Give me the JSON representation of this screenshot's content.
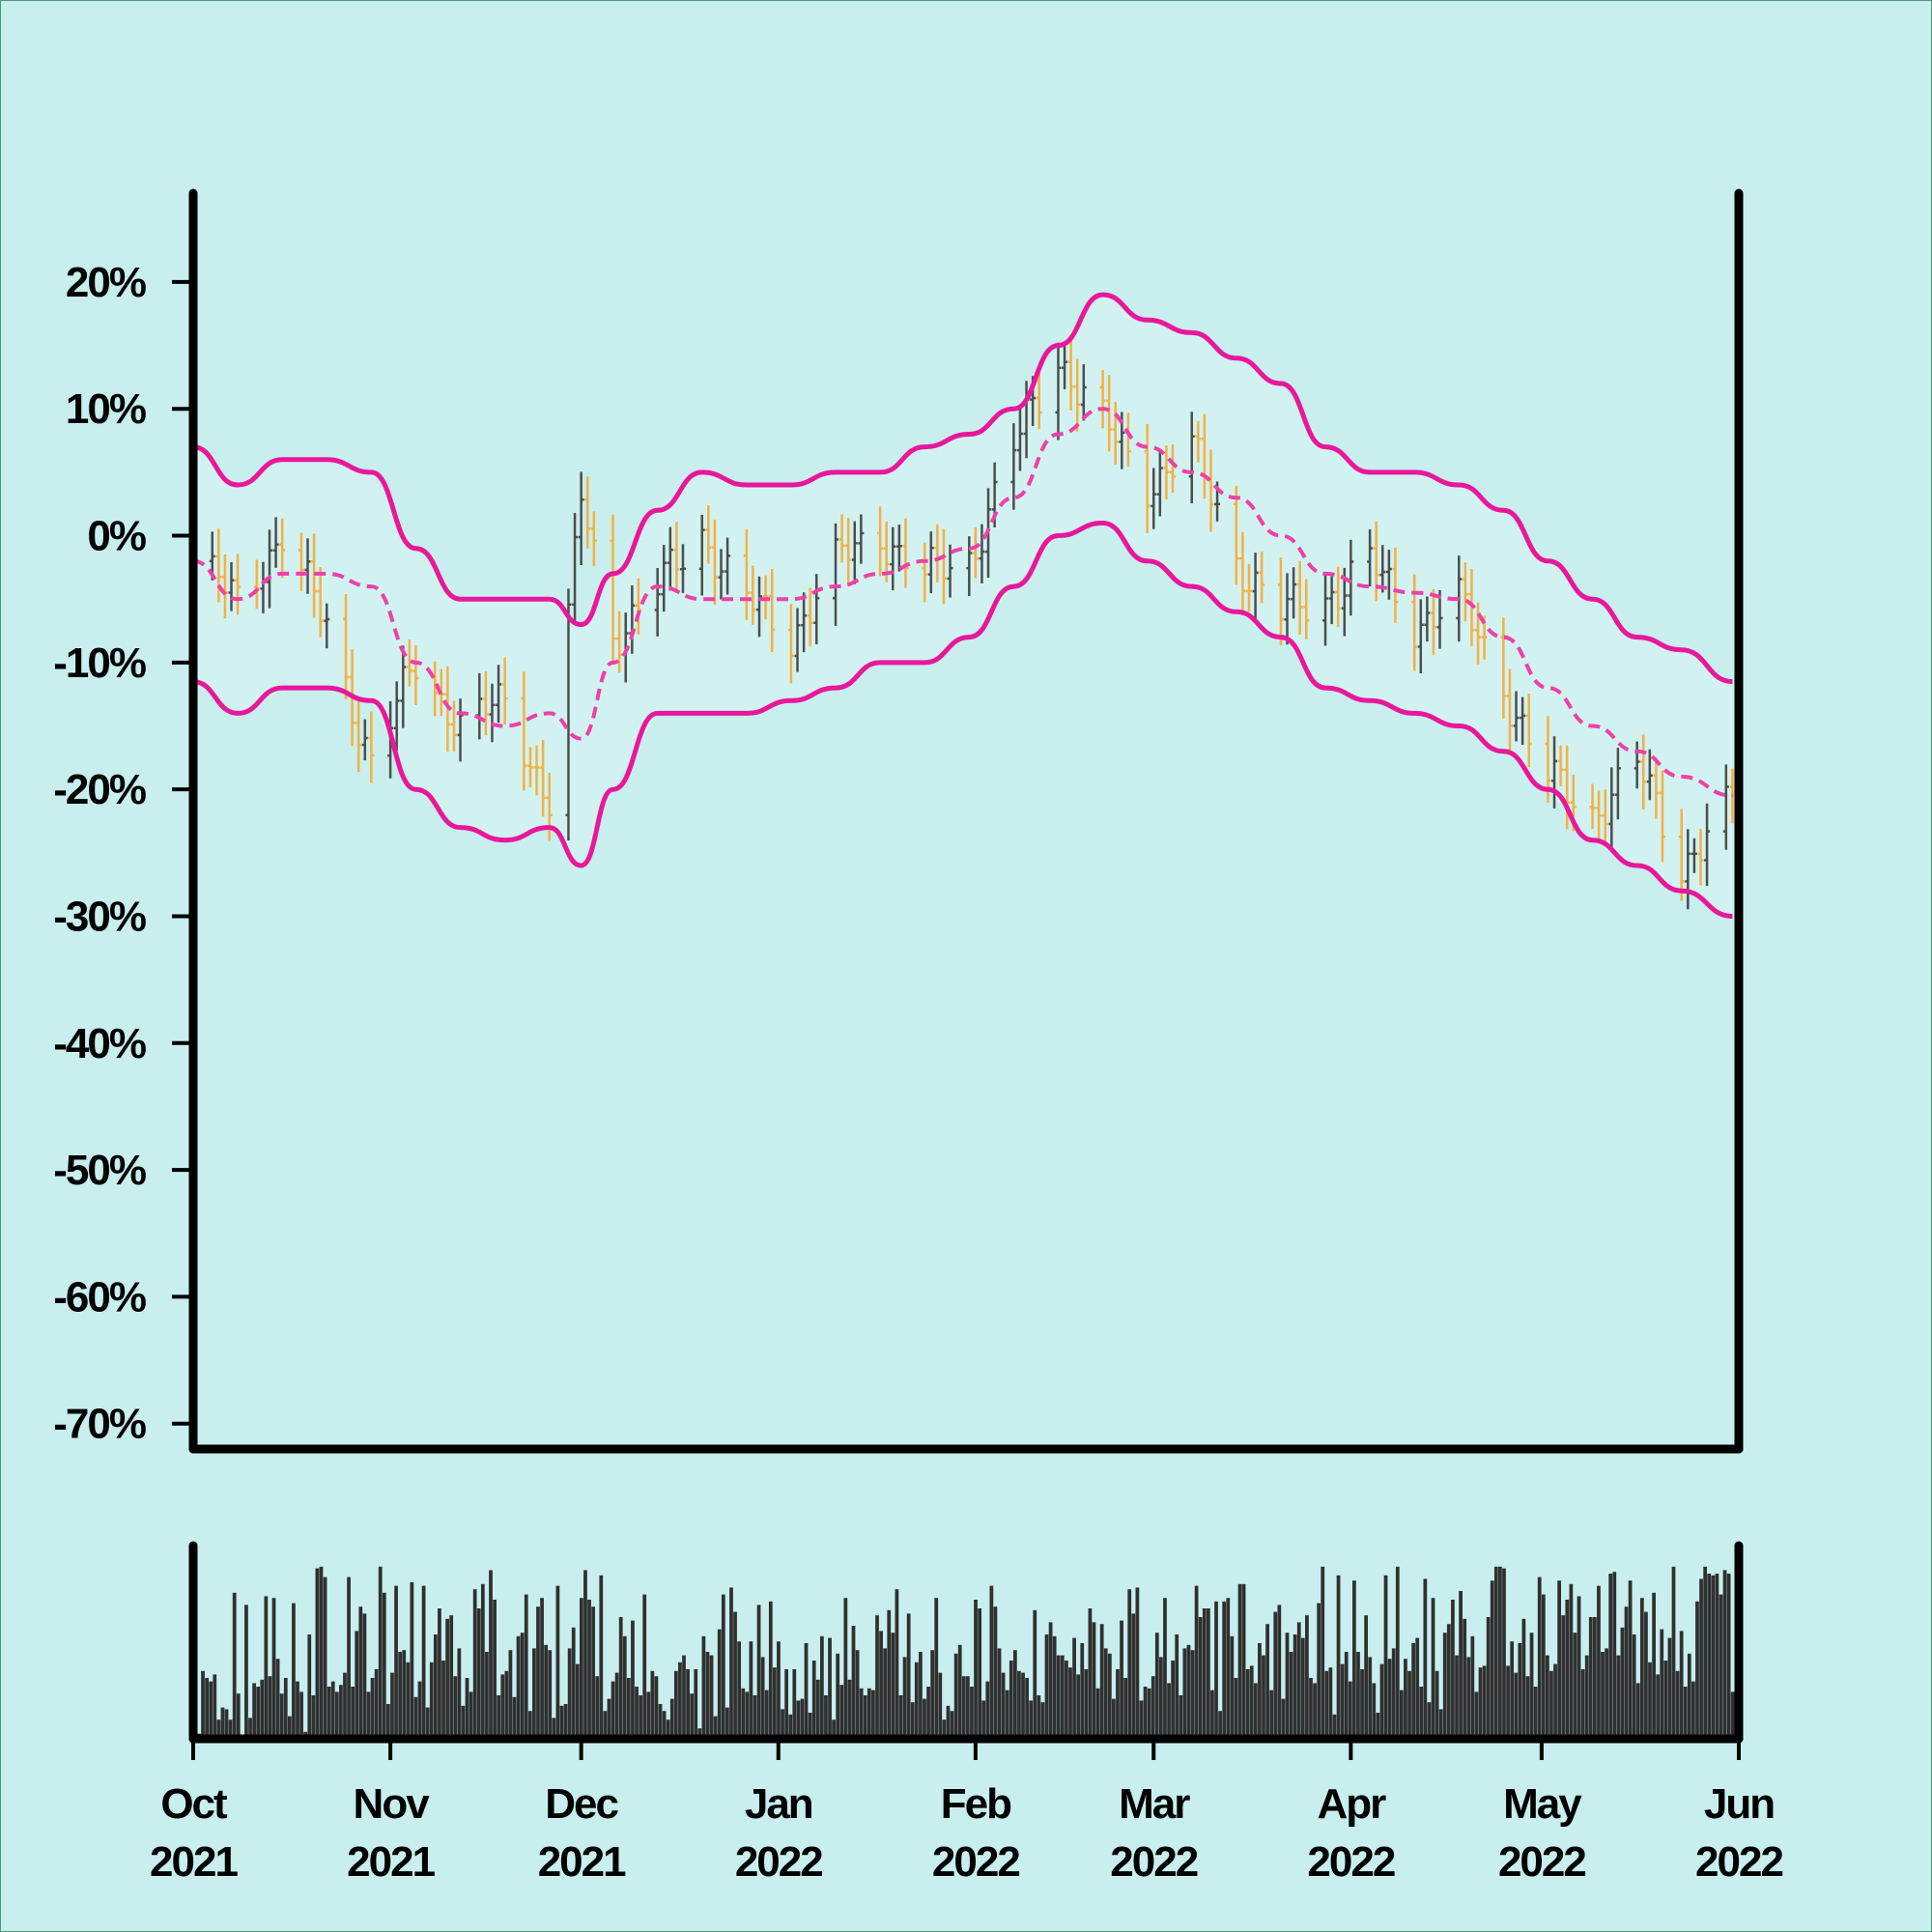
{
  "chart_data": {
    "type": "ohlc",
    "title": "",
    "xlabel": "",
    "ylabel": "",
    "x_range": [
      "2021-10-01",
      "2022-06-01"
    ],
    "ylim": [
      -0.72,
      0.27
    ],
    "y_ticks": [
      0.2,
      0.1,
      0.0,
      -0.1,
      -0.2,
      -0.3,
      -0.4,
      -0.5,
      -0.6,
      -0.7
    ],
    "y_tick_labels": [
      "20%",
      "10%",
      "0%",
      "-10%",
      "-20%",
      "-30%",
      "-40%",
      "-50%",
      "-60%",
      "-70%"
    ],
    "x_ticks": [
      "2021-10-01",
      "2021-11-01",
      "2021-12-01",
      "2022-01-01",
      "2022-02-01",
      "2022-03-01",
      "2022-04-01",
      "2022-05-01",
      "2022-06-01"
    ],
    "x_tick_labels": [
      [
        "Oct",
        "2021"
      ],
      [
        "Nov",
        "2021"
      ],
      [
        "Dec",
        "2021"
      ],
      [
        "Jan",
        "2022"
      ],
      [
        "Feb",
        "2022"
      ],
      [
        "Mar",
        "2022"
      ],
      [
        "Apr",
        "2022"
      ],
      [
        "May",
        "2022"
      ],
      [
        "Jun",
        "2022"
      ]
    ],
    "colors": {
      "background": "#c8eeee",
      "band_fill": "#d2f2f2",
      "band_line": "#e8189a",
      "middle_line": "#ee40a8",
      "up_bar": "#4d4d4d",
      "down_bar": "#f5b041",
      "volume_bar": "#303030",
      "axis": "#000000"
    },
    "series": [
      {
        "name": "price",
        "kind": "ohlc_close",
        "x": [
          "2021-10-01",
          "2021-10-08",
          "2021-10-15",
          "2021-10-22",
          "2021-10-29",
          "2021-11-05",
          "2021-11-12",
          "2021-11-19",
          "2021-11-26",
          "2021-12-01",
          "2021-12-06",
          "2021-12-13",
          "2021-12-20",
          "2021-12-27",
          "2022-01-03",
          "2022-01-10",
          "2022-01-17",
          "2022-01-24",
          "2022-01-31",
          "2022-02-07",
          "2022-02-14",
          "2022-02-21",
          "2022-02-28",
          "2022-03-07",
          "2022-03-14",
          "2022-03-21",
          "2022-03-28",
          "2022-04-04",
          "2022-04-11",
          "2022-04-18",
          "2022-04-25",
          "2022-05-02",
          "2022-05-09",
          "2022-05-16",
          "2022-05-23",
          "2022-05-31"
        ],
        "y": [
          -0.02,
          -0.05,
          0.0,
          -0.07,
          -0.18,
          -0.1,
          -0.15,
          -0.13,
          -0.21,
          0.03,
          -0.08,
          -0.04,
          0.0,
          -0.05,
          -0.08,
          -0.02,
          0.0,
          -0.03,
          -0.02,
          0.07,
          0.14,
          0.09,
          0.04,
          0.07,
          -0.02,
          -0.06,
          -0.05,
          -0.02,
          -0.07,
          -0.05,
          -0.12,
          -0.19,
          -0.22,
          -0.18,
          -0.26,
          -0.21
        ]
      },
      {
        "name": "upper band",
        "kind": "line",
        "x": [
          "2021-10-01",
          "2021-10-08",
          "2021-10-15",
          "2021-10-22",
          "2021-10-29",
          "2021-11-05",
          "2021-11-12",
          "2021-11-19",
          "2021-11-26",
          "2021-12-01",
          "2021-12-06",
          "2021-12-13",
          "2021-12-20",
          "2021-12-27",
          "2022-01-03",
          "2022-01-10",
          "2022-01-17",
          "2022-01-24",
          "2022-01-31",
          "2022-02-07",
          "2022-02-14",
          "2022-02-21",
          "2022-02-28",
          "2022-03-07",
          "2022-03-14",
          "2022-03-21",
          "2022-03-28",
          "2022-04-04",
          "2022-04-11",
          "2022-04-18",
          "2022-04-25",
          "2022-05-02",
          "2022-05-09",
          "2022-05-16",
          "2022-05-23",
          "2022-05-31"
        ],
        "y": [
          0.07,
          0.04,
          0.06,
          0.06,
          0.05,
          -0.01,
          -0.05,
          -0.05,
          -0.05,
          -0.07,
          -0.03,
          0.02,
          0.05,
          0.04,
          0.04,
          0.05,
          0.05,
          0.07,
          0.08,
          0.1,
          0.15,
          0.19,
          0.17,
          0.16,
          0.14,
          0.12,
          0.07,
          0.05,
          0.05,
          0.04,
          0.02,
          -0.02,
          -0.05,
          -0.08,
          -0.09,
          -0.115
        ]
      },
      {
        "name": "middle band",
        "kind": "dashed_line",
        "x": [
          "2021-10-01",
          "2021-10-08",
          "2021-10-15",
          "2021-10-22",
          "2021-10-29",
          "2021-11-05",
          "2021-11-12",
          "2021-11-19",
          "2021-11-26",
          "2021-12-01",
          "2021-12-06",
          "2021-12-13",
          "2021-12-20",
          "2021-12-27",
          "2022-01-03",
          "2022-01-10",
          "2022-01-17",
          "2022-01-24",
          "2022-01-31",
          "2022-02-07",
          "2022-02-14",
          "2022-02-21",
          "2022-02-28",
          "2022-03-07",
          "2022-03-14",
          "2022-03-21",
          "2022-03-28",
          "2022-04-04",
          "2022-04-11",
          "2022-04-18",
          "2022-04-25",
          "2022-05-02",
          "2022-05-09",
          "2022-05-16",
          "2022-05-23",
          "2022-05-31"
        ],
        "y": [
          -0.02,
          -0.05,
          -0.03,
          -0.03,
          -0.04,
          -0.1,
          -0.14,
          -0.15,
          -0.14,
          -0.16,
          -0.1,
          -0.04,
          -0.05,
          -0.05,
          -0.05,
          -0.04,
          -0.03,
          -0.02,
          -0.01,
          0.03,
          0.08,
          0.1,
          0.07,
          0.05,
          0.03,
          0.0,
          -0.03,
          -0.04,
          -0.045,
          -0.05,
          -0.08,
          -0.12,
          -0.15,
          -0.17,
          -0.19,
          -0.205
        ]
      },
      {
        "name": "lower band",
        "kind": "line",
        "x": [
          "2021-10-01",
          "2021-10-08",
          "2021-10-15",
          "2021-10-22",
          "2021-10-29",
          "2021-11-05",
          "2021-11-12",
          "2021-11-19",
          "2021-11-26",
          "2021-12-01",
          "2021-12-06",
          "2021-12-13",
          "2021-12-20",
          "2021-12-27",
          "2022-01-03",
          "2022-01-10",
          "2022-01-17",
          "2022-01-24",
          "2022-01-31",
          "2022-02-07",
          "2022-02-14",
          "2022-02-21",
          "2022-02-28",
          "2022-03-07",
          "2022-03-14",
          "2022-03-21",
          "2022-03-28",
          "2022-04-04",
          "2022-04-11",
          "2022-04-18",
          "2022-04-25",
          "2022-05-02",
          "2022-05-09",
          "2022-05-16",
          "2022-05-23",
          "2022-05-31"
        ],
        "y": [
          -0.115,
          -0.14,
          -0.12,
          -0.12,
          -0.13,
          -0.2,
          -0.23,
          -0.24,
          -0.23,
          -0.26,
          -0.2,
          -0.14,
          -0.14,
          -0.14,
          -0.13,
          -0.12,
          -0.1,
          -0.1,
          -0.08,
          -0.04,
          0.0,
          0.01,
          -0.02,
          -0.04,
          -0.06,
          -0.08,
          -0.12,
          -0.13,
          -0.14,
          -0.15,
          -0.17,
          -0.2,
          -0.24,
          -0.26,
          -0.28,
          -0.3
        ]
      }
    ],
    "volume": {
      "type": "bar",
      "values": [
        0.86,
        0.03,
        0.39,
        0.35,
        0.33,
        0.37,
        0.11,
        0.18,
        0.17,
        0.11,
        0.84,
        0.26,
        0.02,
        0.77,
        0.12,
        0.32,
        0.3,
        0.34,
        0.82,
        0.36,
        0.81,
        0.46,
        0.26,
        0.35,
        0.13,
        0.78,
        0.33,
        0.27,
        0.04,
        0.6,
        0.25,
        0.98,
        0.99,
        0.93,
        0.3,
        0.33,
        0.27,
        0.31,
        0.38,
        0.93,
        0.3,
        0.62,
        0.76,
        0.72,
        0.27,
        0.35,
        0.4,
        0.99,
        0.84,
        0.2,
        0.38,
        0.88,
        0.5,
        0.51,
        0.44,
        0.9,
        0.24,
        0.33,
        0.88,
        0.18,
        0.44,
        0.6,
        0.75,
        0.45,
        0.69,
        0.71,
        0.36,
        0.52,
        0.19,
        0.35,
        0.27,
        0.86,
        0.75,
        0.89,
        0.5,
        0.97,
        0.8,
        0.25,
        0.37,
        0.39,
        0.51,
        0.24,
        0.59,
        0.61,
        0.83,
        0.16,
        0.52,
        0.76,
        0.81,
        0.54,
        0.51,
        0.12,
        0.88,
        0.19,
        0.2,
        0.52,
        0.64,
        0.43,
        0.81,
        0.97,
        0.8,
        0.76,
        0.36,
        0.94,
        0.16,
        0.23,
        0.33,
        0.38,
        0.7,
        0.59,
        0.35,
        0.68,
        0.3,
        0.25,
        0.83,
        0.27,
        0.39,
        0.36,
        0.2,
        0.16,
        0.11,
        0.23,
        0.39,
        0.44,
        0.48,
        0.4,
        0.26,
        0.4,
        0.06,
        0.59,
        0.5,
        0.48,
        0.13,
        0.63,
        0.83,
        0.18,
        0.87,
        0.73,
        0.56,
        0.29,
        0.27,
        0.56,
        0.25,
        0.77,
        0.47,
        0.28,
        0.79,
        0.41,
        0.56,
        0.17,
        0.4,
        0.14,
        0.4,
        0.22,
        0.23,
        0.55,
        0.15,
        0.45,
        0.34,
        0.59,
        0.25,
        0.58,
        0.11,
        0.49,
        0.31,
        0.81,
        0.34,
        0.65,
        0.51,
        0.29,
        0.25,
        0.29,
        0.28,
        0.71,
        0.62,
        0.52,
        0.74,
        0.61,
        0.86,
        0.25,
        0.47,
        0.72,
        0.21,
        0.44,
        0.5,
        0.23,
        0.3,
        0.51,
        0.81,
        0.38,
        0.11,
        0.19,
        0.16,
        0.49,
        0.54,
        0.36,
        0.36,
        0.3,
        0.8,
        0.75,
        0.22,
        0.33,
        0.88,
        0.76,
        0.52,
        0.38,
        0.28,
        0.45,
        0.51,
        0.39,
        0.38,
        0.35,
        0.22,
        0.74,
        0.25,
        0.21,
        0.6,
        0.67,
        0.59,
        0.48,
        0.48,
        0.45,
        0.41,
        0.58,
        0.37,
        0.55,
        0.4,
        0.75,
        0.67,
        0.29,
        0.66,
        0.52,
        0.49,
        0.23,
        0.4,
        0.68,
        0.35,
        0.86,
        0.72,
        0.87,
        0.22,
        0.3,
        0.29,
        0.36,
        0.61,
        0.47,
        0.81,
        0.32,
        0.45,
        0.6,
        0.25,
        0.52,
        0.54,
        0.51,
        0.88,
        0.7,
        0.75,
        0.75,
        0.28,
        0.79,
        0.16,
        0.79,
        0.81,
        0.59,
        0.35,
        0.89,
        0.89,
        0.4,
        0.42,
        0.32,
        0.55,
        0.48,
        0.66,
        0.28,
        0.73,
        0.77,
        0.23,
        0.61,
        0.5,
        0.6,
        0.67,
        0.58,
        0.71,
        0.35,
        0.32,
        0.78,
        0.99,
        0.39,
        0.41,
        0.14,
        0.94,
        0.43,
        0.5,
        0.33,
        0.91,
        0.5,
        0.4,
        0.71,
        0.47,
        0.32,
        0.15,
        0.43,
        0.94,
        0.46,
        0.52,
        0.99,
        0.28,
        0.46,
        0.39,
        0.55,
        0.58,
        0.3,
        0.92,
        0.21,
        0.81,
        0.39,
        0.17,
        0.61,
        0.66,
        0.8,
        0.48,
        0.85,
        0.69,
        0.47,
        0.59,
        0.27,
        0.41,
        0.42,
        0.7,
        0.91,
        0.99,
        0.99,
        0.98,
        0.42,
        0.56,
        0.38,
        0.55,
        0.69,
        0.36,
        0.61,
        0.3,
        0.93,
        0.83,
        0.48,
        0.39,
        0.43,
        0.91,
        0.71,
        0.8,
        0.89,
        0.61,
        0.82,
        0.4,
        0.48,
        0.7,
        0.7,
        0.88,
        0.5,
        0.52,
        0.95,
        0.96,
        0.48,
        0.64,
        0.76,
        0.91,
        0.6,
        0.32,
        0.81,
        0.73,
        0.44,
        0.84,
        0.37,
        0.63,
        0.45,
        0.58,
        0.99,
        0.39,
        0.62,
        0.3,
        0.49,
        0.33,
        0.79,
        0.92,
        0.99,
        0.95,
        0.94,
        0.95,
        0.83,
        0.97,
        0.95,
        0.27,
        0.99
      ]
    }
  }
}
